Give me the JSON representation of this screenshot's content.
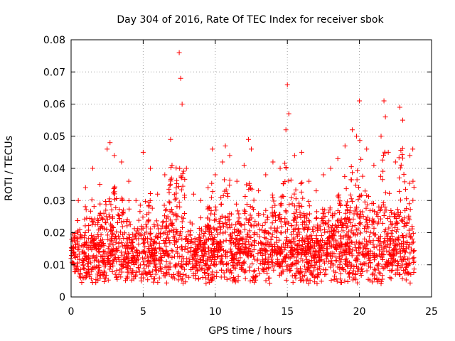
{
  "chart_data": {
    "type": "scatter",
    "title": "Day 304 of 2016, Rate Of TEC Index for receiver sbok",
    "xlabel": "GPS time / hours",
    "ylabel": "ROTI / TECUs",
    "xlim": [
      0,
      25
    ],
    "ylim": [
      0,
      0.08
    ],
    "xticks": [
      0,
      5,
      10,
      15,
      20,
      25
    ],
    "yticks": [
      0,
      0.01,
      0.02,
      0.03,
      0.04,
      0.05,
      0.06,
      0.07,
      0.08
    ],
    "xtick_labels": [
      "0",
      "5",
      "10",
      "15",
      "20",
      "25"
    ],
    "ytick_labels": [
      "0",
      "0.01",
      "0.02",
      "0.03",
      "0.04",
      "0.05",
      "0.06",
      "0.07",
      "0.08"
    ],
    "grid": true,
    "marker": "+",
    "color": "#ff0000",
    "series": [
      {
        "name": "ROTI",
        "note": "dense scatter, ~0.002-0.05 TECU/s over 0-24 h with isolated peaks",
        "x": [
          0.0,
          0.5,
          1.0,
          1.5,
          2.0,
          2.5,
          2.7,
          3.0,
          3.5,
          4.0,
          4.5,
          5.0,
          5.5,
          6.0,
          6.5,
          6.9,
          7.0,
          7.5,
          7.6,
          7.7,
          8.0,
          8.5,
          9.0,
          9.5,
          9.8,
          10.0,
          10.5,
          10.7,
          11.0,
          11.5,
          12.0,
          12.3,
          12.5,
          13.0,
          13.5,
          14.0,
          14.5,
          14.9,
          15.0,
          15.1,
          15.5,
          16.0,
          16.5,
          17.0,
          17.5,
          18.0,
          18.5,
          19.0,
          19.5,
          19.8,
          20.0,
          20.5,
          21.0,
          21.5,
          21.7,
          21.8,
          22.0,
          22.5,
          22.8,
          23.0,
          23.5,
          23.7
        ],
        "y": [
          0.012,
          0.03,
          0.034,
          0.04,
          0.035,
          0.046,
          0.048,
          0.044,
          0.042,
          0.036,
          0.03,
          0.045,
          0.04,
          0.032,
          0.038,
          0.049,
          0.041,
          0.076,
          0.068,
          0.06,
          0.04,
          0.032,
          0.03,
          0.034,
          0.046,
          0.038,
          0.042,
          0.047,
          0.044,
          0.036,
          0.041,
          0.049,
          0.046,
          0.033,
          0.038,
          0.042,
          0.04,
          0.052,
          0.066,
          0.057,
          0.044,
          0.045,
          0.036,
          0.033,
          0.038,
          0.04,
          0.043,
          0.047,
          0.052,
          0.05,
          0.061,
          0.046,
          0.041,
          0.05,
          0.061,
          0.056,
          0.045,
          0.042,
          0.059,
          0.055,
          0.044,
          0.046
        ]
      }
    ]
  }
}
